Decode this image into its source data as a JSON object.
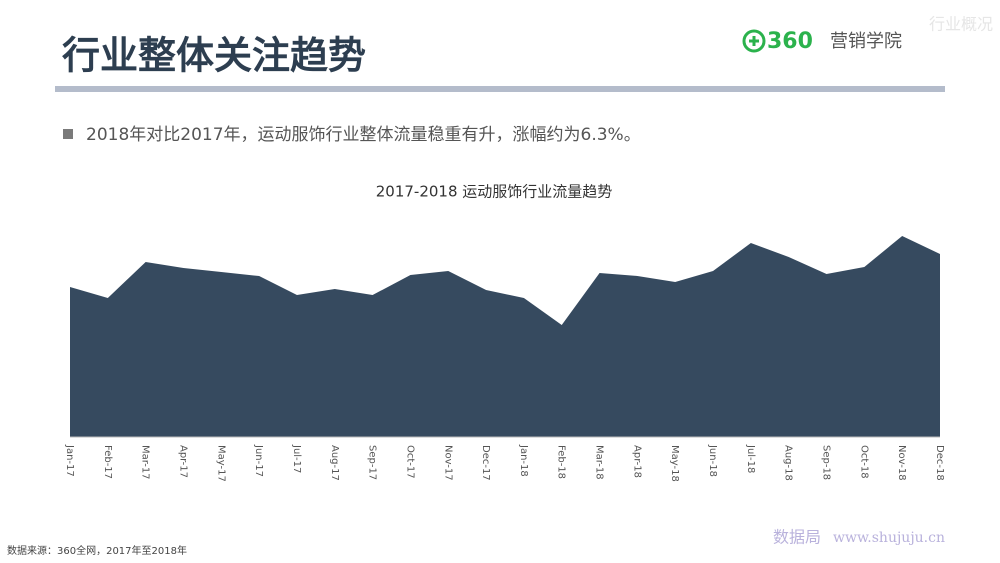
{
  "header": {
    "title": "行业整体关注趋势",
    "logo_mark": "360",
    "logo_text": "营销学院",
    "section": "行业概况"
  },
  "bullet": "2018年对比2017年，运动服饰行业整体流量稳重有升，涨幅约为6.3%。",
  "chart_data": {
    "type": "area",
    "title": "2017-2018 运动服饰行业流量趋势",
    "categories": [
      "Jan-17",
      "Feb-17",
      "Mar-17",
      "Apr-17",
      "May-17",
      "Jun-17",
      "Jul-17",
      "Aug-17",
      "Sep-17",
      "Oct-17",
      "Nov-17",
      "Dec-17",
      "Jan-18",
      "Feb-18",
      "Mar-18",
      "Apr-18",
      "May-18",
      "Jun-18",
      "Jul-18",
      "Aug-18",
      "Sep-18",
      "Oct-18",
      "Nov-18",
      "Dec-18"
    ],
    "values": [
      150,
      139,
      175,
      169,
      165,
      161,
      142,
      148,
      142,
      162,
      166,
      147,
      139,
      112,
      164,
      161,
      155,
      166,
      194,
      180,
      163,
      170,
      201,
      183
    ],
    "color": "#364a5f",
    "ylim": [
      0,
      227
    ]
  },
  "source": "数据来源：360全网，2017年至2018年",
  "watermark": {
    "name": "数据局",
    "url": "www.shujuju.cn"
  }
}
